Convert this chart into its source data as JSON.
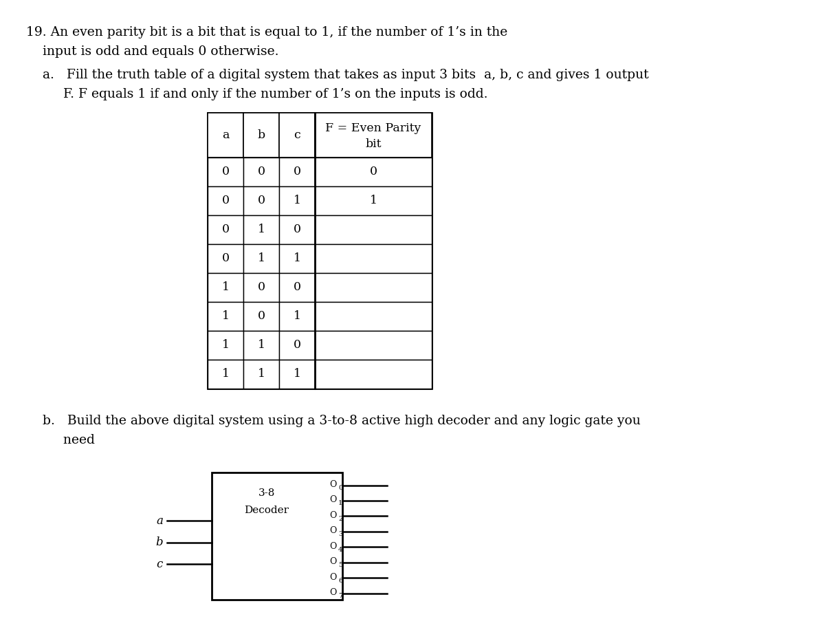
{
  "bg_color": "#ffffff",
  "text_color": "#000000",
  "line1": "19. An even parity bit is a bit that is equal to 1, if the number of 1’s in the",
  "line2": "    input is odd and equals 0 otherwise.",
  "line3a1": "    a.   Fill the truth table of a digital system that takes as input 3 bits  a, b, c and gives 1 output",
  "line3a2": "         F. F equals 1 if and only if the number of 1’s on the inputs is odd.",
  "line4b1": "    b.   Build the above digital system using a 3-to-8 active high decoder and any logic gate you",
  "line4b2": "         need",
  "table_data": [
    [
      "a",
      "b",
      "c",
      "F = Even Parity\nbit"
    ],
    [
      "0",
      "0",
      "0",
      "0"
    ],
    [
      "0",
      "0",
      "1",
      "1"
    ],
    [
      "0",
      "1",
      "0",
      ""
    ],
    [
      "0",
      "1",
      "1",
      ""
    ],
    [
      "1",
      "0",
      "0",
      ""
    ],
    [
      "1",
      "0",
      "1",
      ""
    ],
    [
      "1",
      "1",
      "0",
      ""
    ],
    [
      "1",
      "1",
      "1",
      ""
    ]
  ],
  "font_size_text": 13.5,
  "font_size_table": 12.5,
  "font_size_decoder": 11
}
